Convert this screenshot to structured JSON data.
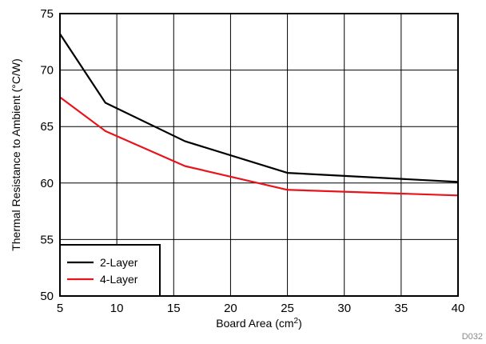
{
  "chart_data": {
    "type": "line",
    "x": [
      5,
      9,
      16,
      25,
      40
    ],
    "series": [
      {
        "name": "2-Layer",
        "color": "#000000",
        "values": [
          73.2,
          67.1,
          63.7,
          60.9,
          60.1
        ]
      },
      {
        "name": "4-Layer",
        "color": "#e8141b",
        "values": [
          67.6,
          64.6,
          61.5,
          59.4,
          58.9
        ]
      }
    ],
    "xlabel_text": "Board Area (cm",
    "xlabel_sup": "2",
    "xlabel_close": ")",
    "ylabel": "Thermal Resistance to Ambient (°C/W)",
    "xlim": [
      5,
      40
    ],
    "ylim": [
      50,
      75
    ],
    "xticks": [
      5,
      10,
      15,
      20,
      25,
      30,
      35,
      40
    ],
    "yticks": [
      50,
      55,
      60,
      65,
      70,
      75
    ],
    "grid": true,
    "legend_position": "bottom-left"
  },
  "figure_id": "D032"
}
